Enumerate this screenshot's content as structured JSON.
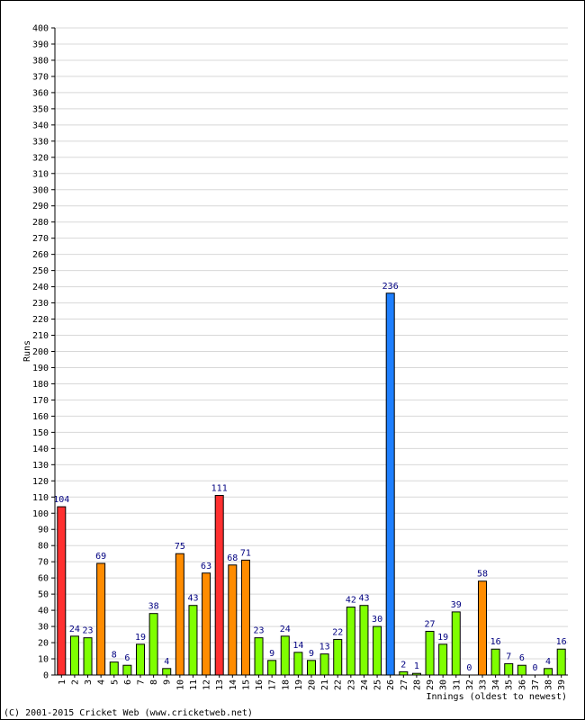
{
  "chart_data": {
    "type": "bar",
    "xlabel": "Innings (oldest to newest)",
    "ylabel": "Runs",
    "ylim": [
      0,
      400
    ],
    "ytick_step": 10,
    "grid": true,
    "categories": [
      "1",
      "2",
      "3",
      "4",
      "5",
      "6",
      "7",
      "8",
      "9",
      "10",
      "11",
      "12",
      "13",
      "14",
      "15",
      "16",
      "17",
      "18",
      "19",
      "20",
      "21",
      "22",
      "23",
      "24",
      "25",
      "26",
      "27",
      "28",
      "29",
      "30",
      "31",
      "32",
      "33",
      "34",
      "35",
      "36",
      "37",
      "38",
      "39"
    ],
    "values": [
      104,
      24,
      23,
      69,
      8,
      6,
      19,
      38,
      4,
      75,
      43,
      63,
      111,
      68,
      71,
      23,
      9,
      24,
      14,
      9,
      13,
      22,
      42,
      43,
      30,
      236,
      2,
      1,
      27,
      19,
      39,
      0,
      58,
      16,
      7,
      6,
      0,
      4,
      16
    ],
    "value_labels": [
      "104",
      "24",
      "23",
      "69",
      "8",
      "6",
      "19",
      "38",
      "4",
      "75",
      "43",
      "63",
      "111",
      "68",
      "71",
      "23",
      "9",
      "24",
      "14",
      "9",
      "13",
      "22",
      "42",
      "43",
      "30",
      "236",
      "2",
      "1",
      "27",
      "19",
      "39",
      "0",
      "58",
      "16",
      "7",
      "6",
      "0",
      "4",
      "16"
    ],
    "colors": {
      "under_50": "#7fff00",
      "fifty": "#ff8c00",
      "hundred": "#ff3030",
      "double_hundred": "#1e7fff",
      "bar_outline": "#000000",
      "grid": "#d8d8d8",
      "label_text": "#000080"
    }
  },
  "footer": {
    "copyright": "(C) 2001-2015 Cricket Web (www.cricketweb.net)"
  }
}
